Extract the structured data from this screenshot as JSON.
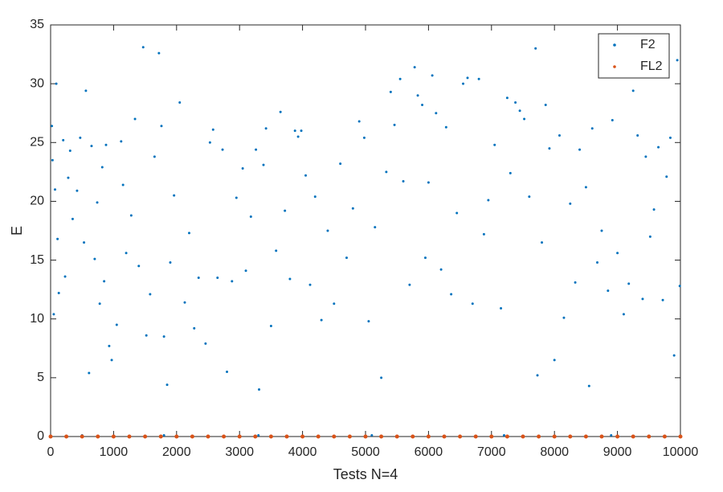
{
  "chart_data": {
    "type": "scatter",
    "x_label": "Tests N=4",
    "y_label": "E",
    "xlim": [
      0,
      10000
    ],
    "xticks": [
      0,
      1000,
      2000,
      3000,
      4000,
      5000,
      6000,
      7000,
      8000,
      9000,
      10000
    ],
    "ylim": [
      0,
      35
    ],
    "yticks": [
      0,
      5,
      10,
      15,
      20,
      25,
      30,
      35
    ],
    "legend": "top-right",
    "series": [
      {
        "name": "F2",
        "color": "#0072BD",
        "x": [
          20,
          30,
          50,
          70,
          90,
          110,
          130,
          200,
          230,
          280,
          310,
          350,
          420,
          470,
          530,
          560,
          610,
          650,
          700,
          740,
          780,
          820,
          850,
          880,
          930,
          970,
          1050,
          1120,
          1150,
          1200,
          1280,
          1340,
          1400,
          1470,
          1520,
          1580,
          1650,
          1720,
          1760,
          1800,
          1850,
          1900,
          1960,
          2050,
          2130,
          2200,
          2280,
          2350,
          2460,
          2530,
          2580,
          2650,
          2730,
          2800,
          2880,
          2950,
          3050,
          3100,
          3180,
          3260,
          3310,
          3380,
          3420,
          3500,
          3580,
          3650,
          3720,
          3800,
          3880,
          3930,
          3980,
          4050,
          4120,
          4200,
          4300,
          4400,
          4500,
          4600,
          4700,
          4800,
          4900,
          4980,
          5050,
          5150,
          5250,
          5330,
          5400,
          5460,
          5550,
          5600,
          5700,
          5780,
          5830,
          5900,
          5950,
          6000,
          6060,
          6120,
          6200,
          6280,
          6360,
          6450,
          6550,
          6620,
          6700,
          6800,
          6880,
          6950,
          7050,
          7150,
          7250,
          7300,
          7380,
          7450,
          7520,
          7600,
          7700,
          7730,
          7800,
          7860,
          7920,
          8000,
          8080,
          8150,
          8250,
          8330,
          8400,
          8500,
          8550,
          8600,
          8680,
          8750,
          8850,
          8920,
          9000,
          9100,
          9180,
          9250,
          9320,
          9400,
          9450,
          9520,
          9580,
          9650,
          9720,
          9780,
          9840,
          9900,
          9950,
          9990,
          500,
          1800,
          3300,
          5100,
          7200,
          8900
        ],
        "values": [
          26.4,
          23.5,
          10.4,
          21,
          30,
          16.8,
          12.2,
          25.2,
          13.6,
          22,
          24.3,
          18.5,
          20.9,
          25.4,
          16.5,
          29.4,
          5.4,
          24.7,
          15.1,
          19.9,
          11.3,
          22.9,
          13.2,
          24.8,
          7.7,
          6.5,
          9.5,
          25.1,
          21.4,
          15.6,
          18.8,
          27,
          14.5,
          33.1,
          8.6,
          12.1,
          23.8,
          32.6,
          26.4,
          8.5,
          4.4,
          14.8,
          20.5,
          28.4,
          11.4,
          17.3,
          9.2,
          13.5,
          7.9,
          25,
          26.1,
          13.5,
          24.4,
          5.5,
          13.2,
          20.3,
          22.8,
          14.1,
          18.7,
          24.4,
          4,
          23.1,
          26.2,
          9.4,
          15.8,
          27.6,
          19.2,
          13.4,
          26,
          25.5,
          26,
          22.2,
          12.9,
          20.4,
          9.9,
          17.5,
          11.3,
          23.2,
          15.2,
          19.4,
          26.8,
          25.4,
          9.8,
          17.8,
          5,
          22.5,
          29.3,
          26.5,
          30.4,
          21.7,
          12.9,
          31.4,
          29,
          28.2,
          15.2,
          21.6,
          30.7,
          27.5,
          14.2,
          26.3,
          12.1,
          19,
          30,
          30.5,
          11.3,
          30.4,
          17.2,
          20.1,
          24.8,
          10.9,
          28.8,
          22.4,
          28.4,
          27.7,
          27,
          20.4,
          33,
          5.2,
          16.5,
          28.2,
          24.5,
          6.5,
          25.6,
          10.1,
          19.8,
          13.1,
          24.4,
          21.2,
          4.3,
          26.2,
          14.8,
          17.5,
          12.4,
          26.9,
          15.6,
          10.4,
          13,
          29.4,
          25.6,
          11.7,
          23.8,
          17,
          19.3,
          24.6,
          11.6,
          22.1,
          25.4,
          6.9,
          32,
          12.8,
          0.1,
          0.1,
          0.1,
          0.1,
          0.1,
          0.1
        ]
      },
      {
        "name": "FL2",
        "color": "#D95319",
        "x": [
          0,
          250,
          500,
          750,
          1000,
          1250,
          1500,
          1750,
          2000,
          2250,
          2500,
          2750,
          3000,
          3250,
          3500,
          3750,
          4000,
          4250,
          4500,
          4750,
          5000,
          5250,
          5500,
          5750,
          6000,
          6250,
          6500,
          6750,
          7000,
          7250,
          7500,
          7750,
          8000,
          8250,
          8500,
          8750,
          9000,
          9250,
          9500,
          9750,
          10000
        ],
        "values": [
          0,
          0,
          0,
          0,
          0,
          0,
          0,
          0,
          0,
          0,
          0,
          0,
          0,
          0,
          0,
          0,
          0,
          0,
          0,
          0,
          0,
          0,
          0,
          0,
          0,
          0,
          0,
          0,
          0,
          0,
          0,
          0,
          0,
          0,
          0,
          0,
          0,
          0,
          0,
          0,
          0
        ]
      }
    ]
  }
}
